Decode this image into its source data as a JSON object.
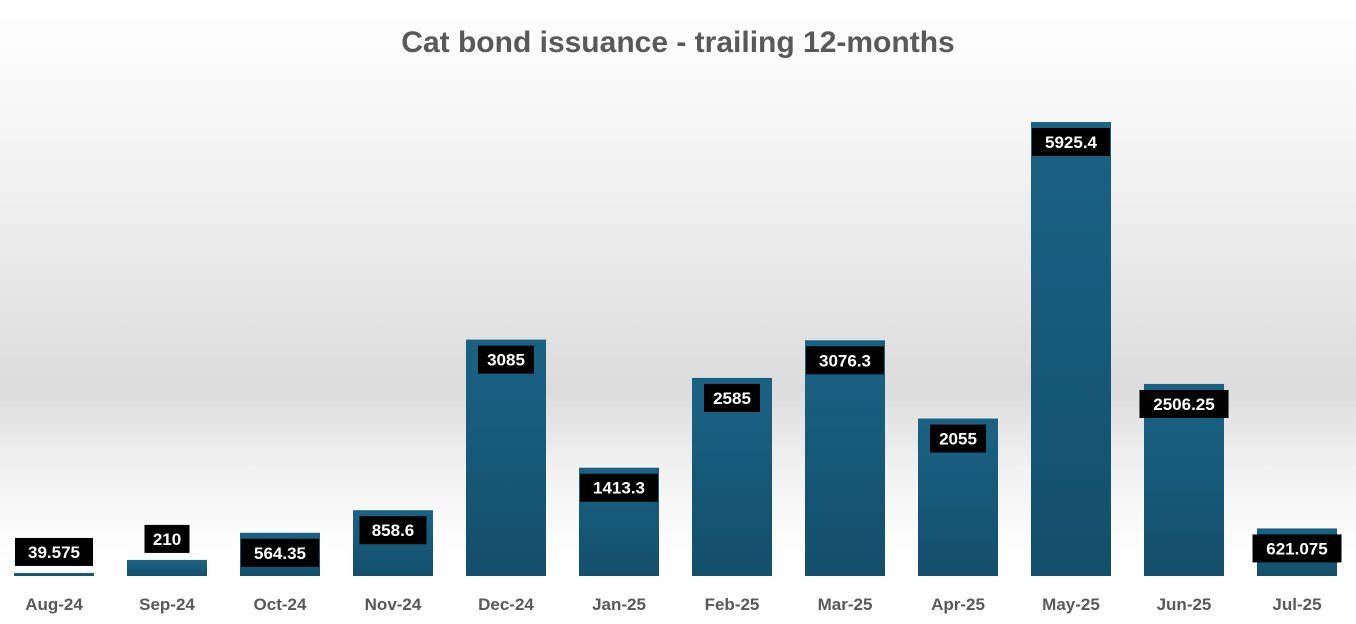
{
  "chart_data": {
    "type": "bar",
    "title": "Cat bond issuance - trailing 12-months",
    "xlabel": "",
    "ylabel": "",
    "categories": [
      "Aug-24",
      "Sep-24",
      "Oct-24",
      "Nov-24",
      "Dec-24",
      "Jan-25",
      "Feb-25",
      "Mar-25",
      "Apr-25",
      "May-25",
      "Jun-25",
      "Jul-25"
    ],
    "values": [
      39.575,
      210,
      564.35,
      858.6,
      3085,
      1413.3,
      2585,
      3076.3,
      2055,
      5925.4,
      2506.25,
      621.075
    ],
    "value_labels": [
      "39.575",
      "210",
      "564.35",
      "858.6",
      "3085",
      "1413.3",
      "2585",
      "3076.3",
      "2055",
      "5925.4",
      "2506.25",
      "621.075"
    ],
    "ylim": [
      0,
      5925.4
    ],
    "grid": false,
    "bar_color": "#175e80",
    "label_bg": "#000000",
    "label_color": "#ffffff"
  }
}
